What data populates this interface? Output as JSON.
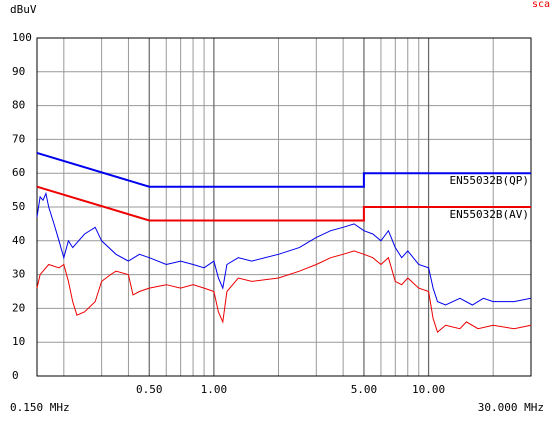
{
  "chart_data": {
    "type": "line",
    "y_label": "dBuV",
    "corner_note": "sca",
    "x_log": true,
    "grid": true,
    "xlim": [
      0.15,
      30
    ],
    "ylim": [
      0,
      100
    ],
    "yticks": [
      0,
      10,
      20,
      30,
      40,
      50,
      60,
      70,
      80,
      90,
      100
    ],
    "xticks": [
      {
        "value": 0.5,
        "label": "0.50"
      },
      {
        "value": 1,
        "label": "1.00"
      },
      {
        "value": 5,
        "label": "5.00"
      },
      {
        "value": 10,
        "label": "10.00"
      }
    ],
    "x_end_labels": [
      {
        "value": 0.15,
        "label": "0.150 MHz"
      },
      {
        "value": 30,
        "label": "30.000 MHz"
      }
    ],
    "minor_xgrid": [
      0.2,
      0.3,
      0.4,
      0.6,
      0.7,
      0.8,
      0.9,
      2,
      3,
      4,
      6,
      7,
      8,
      9,
      20
    ],
    "series": [
      {
        "name": "EN55032B(QP)",
        "color": "#0000ee",
        "x": [
          0.15,
          0.5,
          5,
          5,
          30
        ],
        "values": [
          66,
          56,
          56,
          60,
          60
        ]
      },
      {
        "name": "EN55032B(AV)",
        "color": "#ee0000",
        "x": [
          0.15,
          0.5,
          5,
          5,
          30
        ],
        "values": [
          56,
          46,
          46,
          50,
          50
        ]
      },
      {
        "color": "#0000ee",
        "x": [
          0.15,
          0.155,
          0.16,
          0.165,
          0.17,
          0.18,
          0.19,
          0.2,
          0.21,
          0.22,
          0.25,
          0.28,
          0.3,
          0.35,
          0.4,
          0.45,
          0.5,
          0.6,
          0.7,
          0.8,
          0.9,
          1.0,
          1.05,
          1.1,
          1.15,
          1.3,
          1.5,
          2,
          2.5,
          3,
          3.5,
          4,
          4.5,
          5,
          5.5,
          6,
          6.5,
          7,
          7.5,
          8,
          9,
          10,
          10.5,
          11,
          12,
          14,
          16,
          18,
          20,
          25,
          30
        ],
        "values": [
          47,
          53,
          52,
          54,
          50,
          45,
          40,
          35,
          40,
          38,
          42,
          44,
          40,
          36,
          34,
          36,
          35,
          33,
          34,
          33,
          32,
          34,
          29,
          26,
          33,
          35,
          34,
          36,
          38,
          41,
          43,
          44,
          45,
          43,
          42,
          40,
          43,
          38,
          35,
          37,
          33,
          32,
          26,
          22,
          21,
          23,
          21,
          23,
          22,
          22,
          23
        ]
      },
      {
        "color": "#ee0000",
        "x": [
          0.15,
          0.155,
          0.17,
          0.19,
          0.2,
          0.21,
          0.22,
          0.23,
          0.25,
          0.28,
          0.3,
          0.33,
          0.35,
          0.4,
          0.42,
          0.45,
          0.5,
          0.6,
          0.7,
          0.8,
          0.9,
          1.0,
          1.05,
          1.1,
          1.15,
          1.3,
          1.5,
          2,
          2.5,
          3,
          3.5,
          4,
          4.5,
          5,
          5.5,
          6,
          6.5,
          7,
          7.5,
          8,
          9,
          10,
          10.5,
          11,
          12,
          14,
          15,
          17,
          20,
          25,
          30
        ],
        "values": [
          26,
          30,
          33,
          32,
          33,
          28,
          22,
          18,
          19,
          22,
          28,
          30,
          31,
          30,
          24,
          25,
          26,
          27,
          26,
          27,
          26,
          25,
          19,
          16,
          25,
          29,
          28,
          29,
          31,
          33,
          35,
          36,
          37,
          36,
          35,
          33,
          35,
          28,
          27,
          29,
          26,
          25,
          17,
          13,
          15,
          14,
          16,
          14,
          15,
          14,
          15
        ]
      }
    ]
  }
}
